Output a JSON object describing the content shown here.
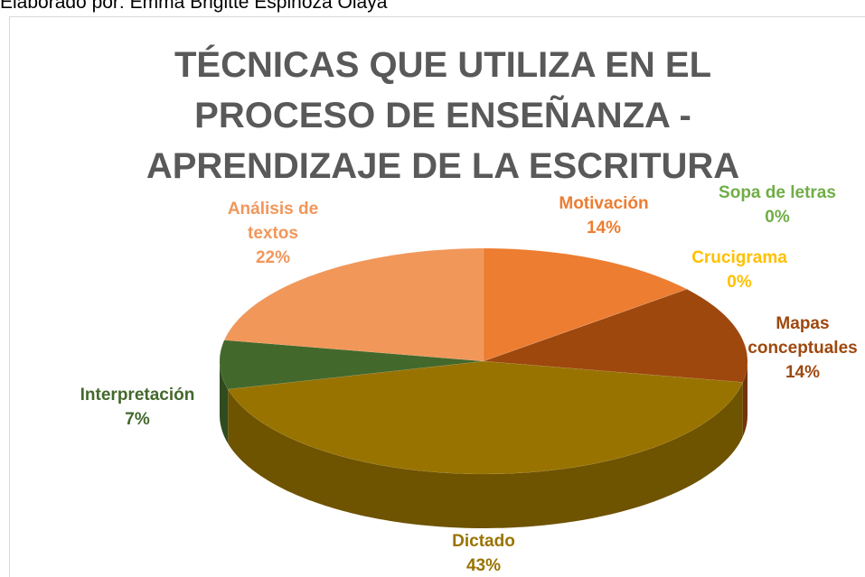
{
  "caption": "Elaborado por: Emma Brigitte Espinoza Olaya",
  "chart_data": {
    "type": "pie3d",
    "title": "TÉCNICAS QUE UTILIZA EN EL PROCESO DE ENSEÑANZA - APRENDIZAJE DE LA ESCRITURA",
    "categories": [
      "Motivación",
      "Sopa de letras",
      "Crucigrama",
      "Mapas conceptuales",
      "Dictado",
      "Interpretación",
      "Análisis de textos"
    ],
    "values": [
      14,
      0,
      0,
      14,
      43,
      7,
      22
    ],
    "value_labels": [
      "14%",
      "0%",
      "0%",
      "14%",
      "43%",
      "7%",
      "22%"
    ],
    "colors": [
      "#ED7D31",
      "#70AD47",
      "#FFC000",
      "#9E480E",
      "#997300",
      "#43682B",
      "#F1975A"
    ]
  }
}
